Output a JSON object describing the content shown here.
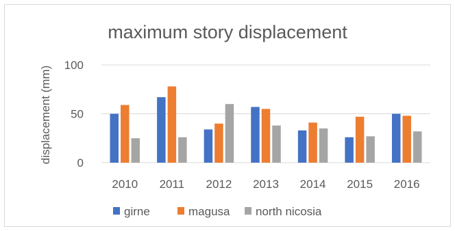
{
  "chart_data": {
    "type": "bar",
    "title": "maximum story displacement",
    "xlabel": "",
    "ylabel": "displacement (mm)",
    "categories": [
      "2010",
      "2011",
      "2012",
      "2013",
      "2014",
      "2015",
      "2016"
    ],
    "ylim": [
      0,
      100
    ],
    "yticks": [
      0,
      50,
      100
    ],
    "grid": true,
    "legend_position": "bottom",
    "series": [
      {
        "name": "girne",
        "color": "#4472C4",
        "values": [
          50,
          67,
          34,
          57,
          33,
          26,
          50
        ]
      },
      {
        "name": "magusa",
        "color": "#ED7D31",
        "values": [
          59,
          78,
          40,
          55,
          41,
          47,
          48
        ]
      },
      {
        "name": "north nicosia",
        "color": "#A5A5A5",
        "values": [
          25,
          26,
          60,
          38,
          35,
          27,
          32
        ]
      }
    ]
  }
}
